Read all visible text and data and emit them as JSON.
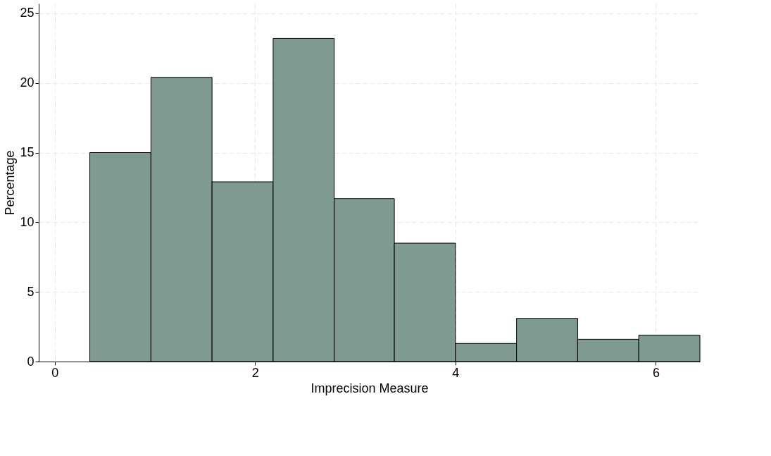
{
  "chart_data": {
    "type": "histogram",
    "xlabel": "Imprecision Measure",
    "ylabel": "Percentage",
    "bins": [
      0.35,
      0.96,
      1.57,
      2.18,
      2.79,
      3.39,
      4.0,
      4.61,
      5.22,
      5.83,
      6.44
    ],
    "values": [
      15.0,
      20.4,
      12.9,
      23.2,
      11.7,
      8.5,
      1.3,
      3.1,
      1.6,
      1.9
    ],
    "color": "#7f9a90",
    "xlim": [
      -0.16,
      6.44
    ],
    "xticks": [
      0,
      2,
      4,
      6
    ],
    "ylim": [
      0,
      25.7
    ],
    "yticks": [
      0,
      5,
      10,
      15,
      20,
      25
    ],
    "grid": true
  }
}
